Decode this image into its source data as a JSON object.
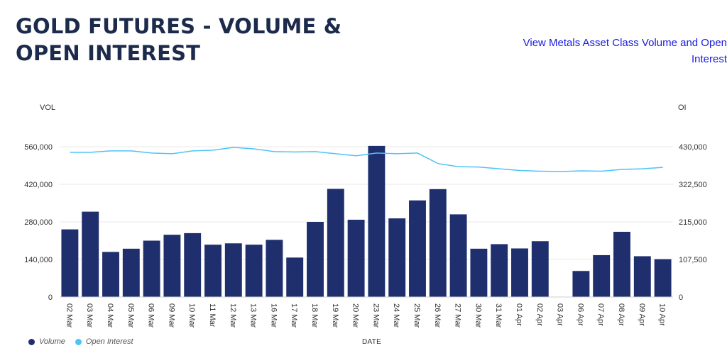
{
  "page": {
    "title": "GOLD FUTURES - VOLUME & OPEN INTEREST",
    "link_label": "View Metals Asset Class Volume and Open Interest"
  },
  "colors": {
    "volume": "#1f2f6e",
    "open_interest": "#4fc3f7",
    "grid": "#e8e8e8",
    "text": "#333333"
  },
  "chart_data": {
    "type": "bar+line",
    "title": "GOLD FUTURES - VOLUME & OPEN INTEREST",
    "xlabel": "DATE",
    "ylabel_left": "VOL",
    "ylabel_right": "OI",
    "categories": [
      "02 Mar",
      "03 Mar",
      "04 Mar",
      "05 Mar",
      "06 Mar",
      "09 Mar",
      "10 Mar",
      "11 Mar",
      "12 Mar",
      "13 Mar",
      "16 Mar",
      "17 Mar",
      "18 Mar",
      "19 Mar",
      "20 Mar",
      "23 Mar",
      "24 Mar",
      "25 Mar",
      "26 Mar",
      "27 Mar",
      "30 Mar",
      "31 Mar",
      "01 Apr",
      "02 Apr",
      "03 Apr",
      "06 Apr",
      "07 Apr",
      "08 Apr",
      "09 Apr",
      "10 Apr"
    ],
    "left_ticks": [
      "0",
      "140,000",
      "280,000",
      "420,000",
      "560,000"
    ],
    "left_tick_values": [
      0,
      140000,
      280000,
      420000,
      560000
    ],
    "right_ticks": [
      "0",
      "107,500",
      "215,000",
      "322,500",
      "430,000"
    ],
    "right_tick_values": [
      0,
      107500,
      215000,
      322500,
      430000
    ],
    "ylim_left": [
      0,
      560000
    ],
    "ylim_right": [
      0,
      430000
    ],
    "series": [
      {
        "name": "Volume",
        "type": "bar",
        "axis": "left",
        "values": [
          252000,
          318000,
          168000,
          180000,
          210000,
          232000,
          238000,
          195000,
          200000,
          195000,
          213000,
          147000,
          280000,
          403000,
          288000,
          563000,
          293000,
          360000,
          402000,
          308000,
          180000,
          197000,
          181000,
          208000,
          0,
          97000,
          156000,
          243000,
          152000,
          141000
        ]
      },
      {
        "name": "Open Interest",
        "type": "line",
        "axis": "right",
        "values": [
          414000,
          414000,
          418000,
          418000,
          412000,
          410000,
          418000,
          420000,
          428000,
          424000,
          416000,
          415000,
          416000,
          410000,
          404000,
          412000,
          410000,
          412000,
          382000,
          373000,
          372000,
          367000,
          362000,
          360000,
          359000,
          361000,
          360000,
          365000,
          367000,
          371000
        ]
      }
    ],
    "legend": [
      "Volume",
      "Open Interest"
    ],
    "grid": true
  }
}
